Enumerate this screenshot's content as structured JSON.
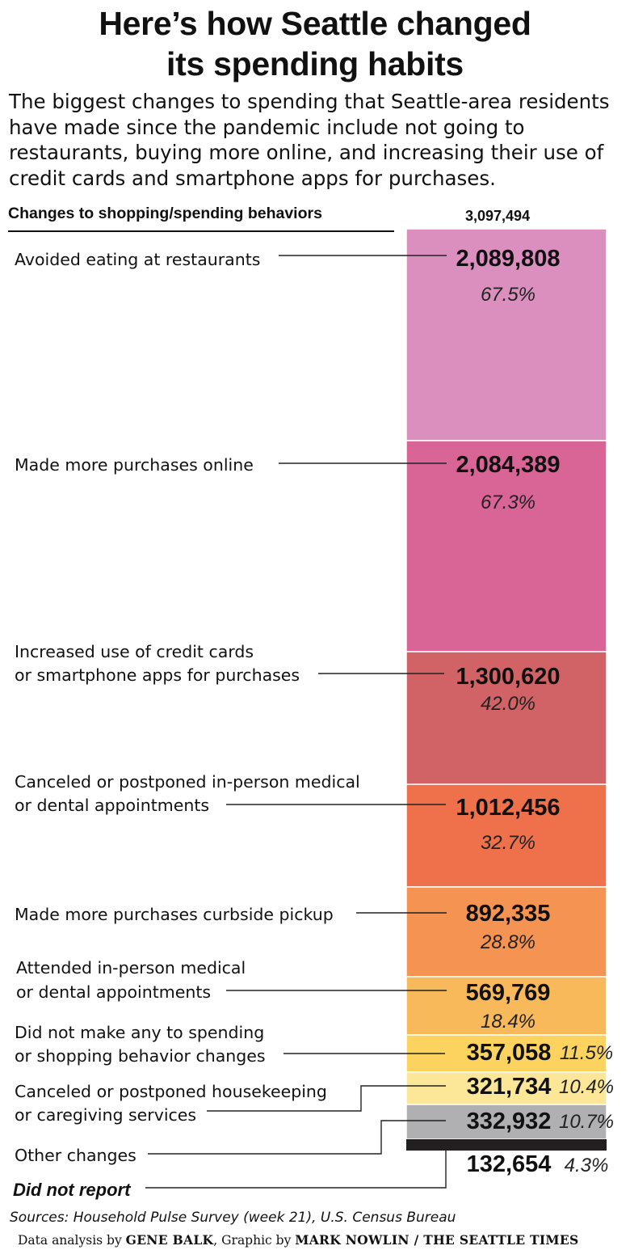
{
  "title_line1": "Here’s how Seattle changed",
  "title_line2": "its spending habits",
  "subtitle": "The biggest changes to spending that Seattle-area residents have made since the pandemic include not going to restaurants, buying more online, and increasing their use of credit cards and smartphone apps for purchases.",
  "credit": {
    "sources": "Sources: Household Pulse Survey (week 21), U.S. Census Bureau",
    "analysis_prefix": "Data analysis by ",
    "analyst": "GENE BALK",
    "graphic_prefix": ", Graphic by ",
    "artist": "MARK NOWLIN / THE SEATTLE TIMES"
  },
  "chart_data": {
    "type": "bar",
    "orientation": "stacked-column",
    "header_label": "Changes to shopping/spending behaviors",
    "total": "3,097,494",
    "categories": [
      [
        "Avoided eating at restaurants"
      ],
      [
        "Made more purchases online"
      ],
      [
        "Increased use of credit cards",
        "or smartphone apps for purchases"
      ],
      [
        "Canceled or postponed in-person medical",
        "or dental appointments"
      ],
      [
        "Made more purchases curbside pickup"
      ],
      [
        "Attended in-person medical",
        "or dental appointments"
      ],
      [
        "Did not make any to spending",
        "or shopping behavior changes"
      ],
      [
        "Canceled or postponed housekeeping",
        "or caregiving services"
      ],
      [
        "Other changes"
      ],
      [
        "Did not report"
      ]
    ],
    "values": [
      2089808,
      2084389,
      1300620,
      1012456,
      892335,
      569769,
      357058,
      321734,
      332932,
      132654
    ],
    "value_labels": [
      "2,089,808",
      "2,084,389",
      "1,300,620",
      "1,012,456",
      "892,335",
      "569,769",
      "357,058",
      "321,734",
      "332,932",
      "132,654"
    ],
    "percent_labels": [
      "67.5%",
      "67.3%",
      "42.0%",
      "32.7%",
      "28.8%",
      "18.4%",
      "11.5%",
      "10.4%",
      "10.7%",
      "4.3%"
    ],
    "colors": [
      "#db8fbe",
      "#d96597",
      "#d16265",
      "#ef714c",
      "#f59452",
      "#f8b95a",
      "#fbd35e",
      "#fbe797",
      "#b0b0b2",
      "#231f20"
    ]
  }
}
